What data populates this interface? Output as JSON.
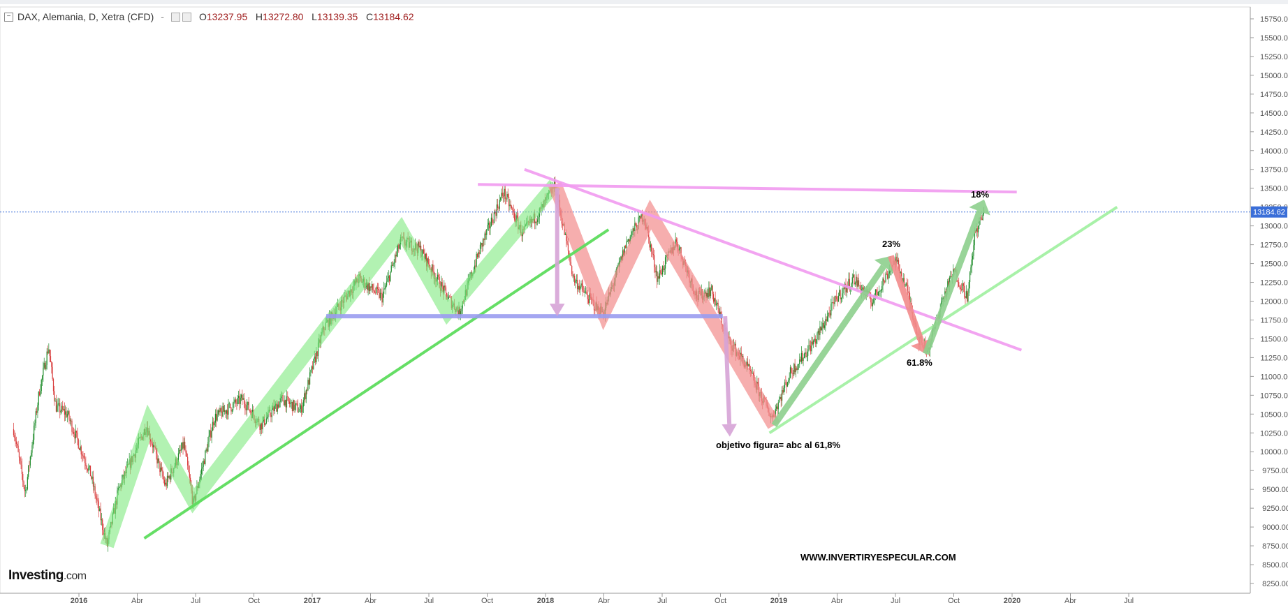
{
  "header": {
    "symbol": "DAX, Alemania, D, Xetra (CFD)",
    "dash": "-",
    "open_label": "O",
    "open_value": "13237.95",
    "high_label": "H",
    "high_value": "13272.80",
    "low_label": "L",
    "low_value": "13139.35",
    "close_label": "C",
    "close_value": "13184.62"
  },
  "logo": {
    "brand": "Investing",
    "suffix": ".com"
  },
  "price_tag": "13184.62",
  "colors": {
    "green": "#7fea7f",
    "green_line": "#5ddc5d",
    "red": "#f28b8b",
    "magenta": "#f19af0",
    "blue": "#9a9cf0",
    "purple_arrow": "#d6a3d6",
    "price_tag_bg": "#3a6ed8",
    "candle_up": "#1f8c2b",
    "candle_down": "#d83a3a"
  },
  "annotations": {
    "pct_18": "18%",
    "pct_23": "23%",
    "pct_618": "61.8%",
    "objective": "objetivo figura= abc al 61,8%",
    "website": "WWW.INVERTIRYESPECULAR.COM"
  },
  "chart_data": {
    "type": "candlestick",
    "title": "DAX, Alemania, D, Xetra (CFD)",
    "y_axis_ticks": [
      "15750.00",
      "15500.00",
      "15250.00",
      "15000.00",
      "14750.00",
      "14500.00",
      "14250.00",
      "14000.00",
      "13750.00",
      "13500.00",
      "13250.00",
      "13000.00",
      "12750.00",
      "12500.00",
      "12250.00",
      "12000.00",
      "11750.00",
      "11500.00",
      "11250.00",
      "11000.00",
      "10750.00",
      "10500.00",
      "10250.00",
      "10000.00",
      "9750.00",
      "9500.00",
      "9250.00",
      "9000.00",
      "8750.00",
      "8500.00",
      "8250.00"
    ],
    "ylim": [
      8250,
      15750
    ],
    "x_axis_ticks": [
      {
        "label": "2016",
        "t": 2016.0,
        "bold": true
      },
      {
        "label": "Abr",
        "t": 2016.25
      },
      {
        "label": "Jul",
        "t": 2016.5
      },
      {
        "label": "Oct",
        "t": 2016.75
      },
      {
        "label": "2017",
        "t": 2017.0,
        "bold": true
      },
      {
        "label": "Abr",
        "t": 2017.25
      },
      {
        "label": "Jul",
        "t": 2017.5
      },
      {
        "label": "Oct",
        "t": 2017.75
      },
      {
        "label": "2018",
        "t": 2018.0,
        "bold": true
      },
      {
        "label": "Abr",
        "t": 2018.25
      },
      {
        "label": "Jul",
        "t": 2018.5
      },
      {
        "label": "Oct",
        "t": 2018.75
      },
      {
        "label": "2019",
        "t": 2019.0,
        "bold": true
      },
      {
        "label": "Abr",
        "t": 2019.25
      },
      {
        "label": "Jul",
        "t": 2019.5
      },
      {
        "label": "Oct",
        "t": 2019.75
      },
      {
        "label": "2020",
        "t": 2020.0,
        "bold": true
      },
      {
        "label": "Abr",
        "t": 2020.25
      },
      {
        "label": "Jul",
        "t": 2020.5
      }
    ],
    "price_path": [
      [
        2015.72,
        10300
      ],
      [
        2015.77,
        9450
      ],
      [
        2015.83,
        10800
      ],
      [
        2015.87,
        11400
      ],
      [
        2015.9,
        10600
      ],
      [
        2015.95,
        10500
      ],
      [
        2016.05,
        9700
      ],
      [
        2016.12,
        8750
      ],
      [
        2016.17,
        9500
      ],
      [
        2016.29,
        10350
      ],
      [
        2016.37,
        9550
      ],
      [
        2016.45,
        10100
      ],
      [
        2016.49,
        9300
      ],
      [
        2016.58,
        10450
      ],
      [
        2016.7,
        10700
      ],
      [
        2016.78,
        10350
      ],
      [
        2016.87,
        10700
      ],
      [
        2016.95,
        10550
      ],
      [
        2017.05,
        11650
      ],
      [
        2017.2,
        12300
      ],
      [
        2017.3,
        12050
      ],
      [
        2017.38,
        12800
      ],
      [
        2017.46,
        12700
      ],
      [
        2017.58,
        12050
      ],
      [
        2017.63,
        11850
      ],
      [
        2017.72,
        12700
      ],
      [
        2017.82,
        13450
      ],
      [
        2017.9,
        12900
      ],
      [
        2017.98,
        13200
      ],
      [
        2018.04,
        13550
      ],
      [
        2018.12,
        12300
      ],
      [
        2018.22,
        11900
      ],
      [
        2018.25,
        11850
      ],
      [
        2018.35,
        12800
      ],
      [
        2018.42,
        13150
      ],
      [
        2018.48,
        12300
      ],
      [
        2018.56,
        12800
      ],
      [
        2018.65,
        12050
      ],
      [
        2018.71,
        12150
      ],
      [
        2018.78,
        11500
      ],
      [
        2018.86,
        11150
      ],
      [
        2018.97,
        10450
      ],
      [
        2019.05,
        11050
      ],
      [
        2019.16,
        11500
      ],
      [
        2019.25,
        12050
      ],
      [
        2019.32,
        12300
      ],
      [
        2019.4,
        12000
      ],
      [
        2019.5,
        12550
      ],
      [
        2019.55,
        12150
      ],
      [
        2019.6,
        11500
      ],
      [
        2019.64,
        11350
      ],
      [
        2019.7,
        12000
      ],
      [
        2019.75,
        12400
      ],
      [
        2019.81,
        12050
      ],
      [
        2019.84,
        12900
      ],
      [
        2019.88,
        13184.62
      ]
    ],
    "last_value": 13184.62,
    "patterns": {
      "green_wave_2016_2017": [
        [
          2016.12,
          8750
        ],
        [
          2016.3,
          10400
        ],
        [
          2016.49,
          9350
        ],
        [
          2017.38,
          12950
        ],
        [
          2017.58,
          11850
        ],
        [
          2018.04,
          13550
        ]
      ],
      "red_wave_2018": [
        [
          2018.04,
          13550
        ],
        [
          2018.25,
          11850
        ],
        [
          2018.45,
          13150
        ],
        [
          2018.98,
          10350
        ]
      ],
      "green_wave_2019": [
        [
          2018.98,
          10350
        ],
        [
          2019.48,
          12600
        ]
      ],
      "red_wave_2019": [
        [
          2019.48,
          12600
        ],
        [
          2019.63,
          11300
        ]
      ],
      "green_wave_2019b": [
        [
          2019.63,
          11300
        ],
        [
          2019.88,
          13350
        ]
      ],
      "support_line_2016": [
        [
          2016.28,
          8850
        ],
        [
          2018.27,
          12950
        ]
      ],
      "support_line_2019": [
        [
          2018.96,
          10250
        ],
        [
          2020.45,
          13250
        ]
      ],
      "resistance_flat": [
        [
          2017.71,
          13550
        ],
        [
          2020.02,
          13450
        ]
      ],
      "resistance_falling": [
        [
          2017.91,
          13750
        ],
        [
          2020.04,
          11350
        ]
      ],
      "neckline": [
        [
          2017.06,
          11800
        ],
        [
          2018.76,
          11800
        ]
      ],
      "arrow_2018": [
        [
          2018.05,
          13500
        ],
        [
          2018.05,
          11800
        ]
      ],
      "arrow_objective": [
        [
          2018.77,
          11800
        ],
        [
          2018.79,
          10200
        ]
      ]
    }
  }
}
